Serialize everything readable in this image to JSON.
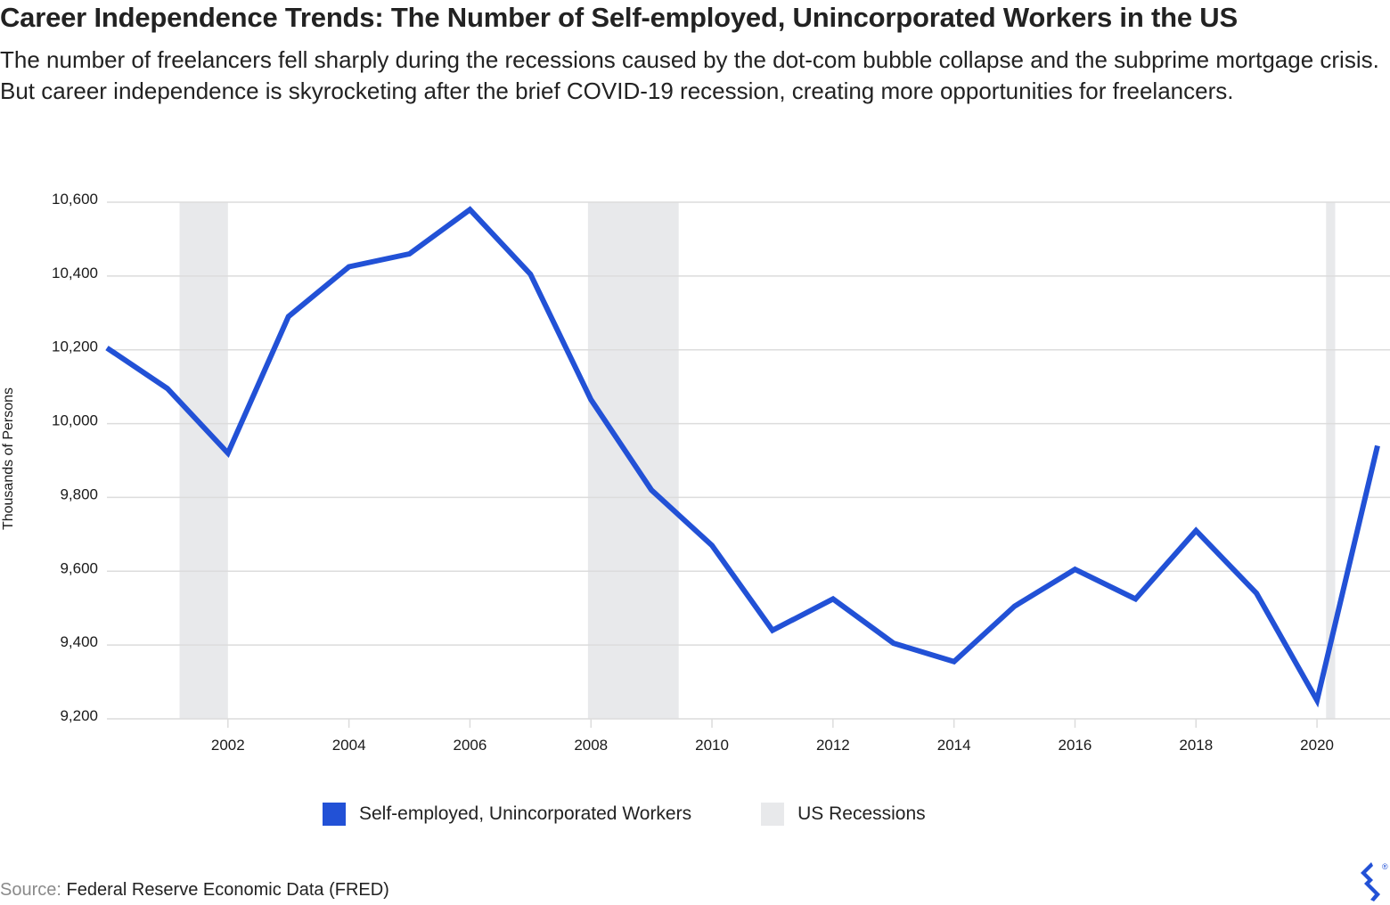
{
  "title": "Career Independence Trends: The Number of Self-employed, Unincorporated Workers in the US",
  "subtitle": "The number of freelancers fell sharply during the recessions caused by the dot-com bubble collapse and the subprime mortgage crisis. But career independence is skyrocketing after the brief COVID-19 recession, creating more opportunities for freelancers.",
  "source": {
    "label": "Source:",
    "text": "Federal Reserve Economic Data (FRED)"
  },
  "colors": {
    "line": "#2251d6",
    "recession": "#e8e9eb",
    "grid": "#dcdcdc",
    "logo": "#2251d6"
  },
  "logo": {
    "icon": "toptal-logo-icon",
    "mark": "®"
  },
  "chart_data": {
    "type": "line",
    "ylabel": "Thousands of Persons",
    "xlabel": "",
    "xlim": [
      2000,
      2021
    ],
    "ylim": [
      9200,
      10600
    ],
    "yticks": [
      9200,
      9400,
      9600,
      9800,
      10000,
      10200,
      10400,
      10600
    ],
    "ytick_labels": [
      "9,200",
      "9,400",
      "9,600",
      "9,800",
      "10,000",
      "10,200",
      "10,400",
      "10,600"
    ],
    "xticks": [
      2002,
      2004,
      2006,
      2008,
      2010,
      2012,
      2014,
      2016,
      2018,
      2020
    ],
    "xtick_labels": [
      "2002",
      "2004",
      "2006",
      "2008",
      "2010",
      "2012",
      "2014",
      "2016",
      "2018",
      "2020"
    ],
    "grid": true,
    "legend_position": "bottom-center",
    "series": [
      {
        "name": "Self-employed, Unincorporated Workers",
        "x": [
          2000,
          2001,
          2002,
          2003,
          2004,
          2005,
          2006,
          2007,
          2008,
          2009,
          2010,
          2011,
          2012,
          2013,
          2014,
          2015,
          2016,
          2017,
          2018,
          2019,
          2020,
          2021
        ],
        "values": [
          10205,
          10095,
          9920,
          10290,
          10425,
          10460,
          10580,
          10405,
          10065,
          9820,
          9670,
          9440,
          9525,
          9405,
          9355,
          9505,
          9605,
          9525,
          9710,
          9540,
          9250,
          9940
        ]
      }
    ],
    "shaded_regions": {
      "name": "US Recessions",
      "ranges": [
        [
          2001.2,
          2002.0
        ],
        [
          2007.95,
          2009.45
        ],
        [
          2020.15,
          2020.3
        ]
      ]
    }
  }
}
